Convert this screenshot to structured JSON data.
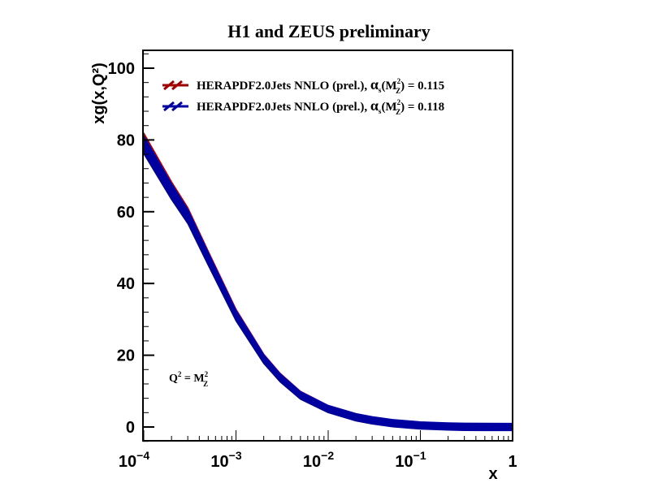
{
  "chart_data": {
    "type": "area",
    "title": "H1 and ZEUS preliminary",
    "xlabel": "x",
    "ylabel": "xg(x,Q²)",
    "xscale": "log",
    "xlim": [
      0.0001,
      1
    ],
    "ylim": [
      -4,
      105
    ],
    "x_ticks": [
      {
        "v": 0.0001,
        "base": "10",
        "exp": "−4"
      },
      {
        "v": 0.001,
        "base": "10",
        "exp": "−3"
      },
      {
        "v": 0.01,
        "base": "10",
        "exp": "−2"
      },
      {
        "v": 0.1,
        "base": "10",
        "exp": "−1"
      },
      {
        "v": 1,
        "base": "1",
        "exp": ""
      }
    ],
    "y_ticks": [
      0,
      20,
      40,
      60,
      80,
      100
    ],
    "annotation": {
      "q": "Q",
      "q_exp": "2",
      "eq": " = M",
      "m_sup": "2",
      "m_sub": "Z"
    },
    "legend_position": "top-left",
    "x": [
      0.0001,
      0.0002,
      0.0003,
      0.0005,
      0.001,
      0.002,
      0.003,
      0.005,
      0.01,
      0.02,
      0.03,
      0.05,
      0.1,
      0.2,
      0.3,
      0.5,
      1
    ],
    "series": [
      {
        "name_prefix": "HERAPDF2.0Jets NNLO (prel.), ",
        "alpha": "α",
        "alpha_sub": "s",
        "m_sup": "2",
        "m_sub": "Z",
        "value_text": " = 0.115",
        "color": "#a00000",
        "values": [
          79.8,
          66.5,
          59.5,
          47.5,
          31.5,
          19.2,
          14.0,
          9.0,
          5.1,
          2.8,
          1.9,
          1.1,
          0.45,
          0.15,
          0.06,
          0.01,
          0
        ],
        "band": [
          1.5,
          1.2,
          1.0,
          0.9,
          0.7,
          0.5,
          0.4,
          0.35,
          0.3,
          0.3,
          0.3,
          0.3,
          0.3,
          0.3,
          0.3,
          0.3,
          0.3
        ]
      },
      {
        "name_prefix": "HERAPDF2.0Jets NNLO (prel.), ",
        "alpha": "α",
        "alpha_sub": "s",
        "m_sup": "2",
        "m_sub": "Z",
        "value_text": " = 0.118",
        "color": "#0000a0",
        "values": [
          78.6,
          65.5,
          58.6,
          46.8,
          31.0,
          18.9,
          13.7,
          8.8,
          5.0,
          2.7,
          1.85,
          1.05,
          0.43,
          0.14,
          0.05,
          0.01,
          0
        ],
        "band": [
          1.8,
          1.5,
          1.3,
          1.1,
          0.8,
          0.6,
          0.5,
          0.45,
          0.4,
          0.4,
          0.4,
          0.4,
          0.4,
          0.4,
          0.4,
          0.4,
          0.4
        ]
      }
    ]
  }
}
